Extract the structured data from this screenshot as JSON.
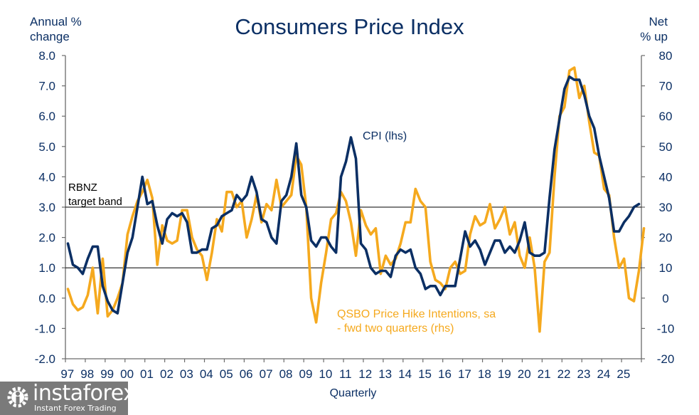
{
  "chart_data": {
    "type": "line",
    "title": "Consumers Price Index",
    "xlabel": "Quarterly",
    "ylabel_left": "Annual % change",
    "ylabel_left_lines": [
      "Annual %",
      "change"
    ],
    "ylabel_right": "Net % up",
    "ylabel_right_lines": [
      "Net",
      "% up"
    ],
    "ylim_left": [
      -2.0,
      8.0
    ],
    "ylim_right": [
      -20,
      80
    ],
    "yticks_left": [
      "8.0",
      "7.0",
      "6.0",
      "5.0",
      "4.0",
      "3.0",
      "2.0",
      "1.0",
      "0.0",
      "-1.0",
      "-2.0"
    ],
    "yticks_right": [
      "80",
      "70",
      "60",
      "50",
      "40",
      "30",
      "20",
      "10",
      "0",
      "-10",
      "-20"
    ],
    "xticks": [
      "97",
      "98",
      "99",
      "00",
      "01",
      "02",
      "03",
      "04",
      "05",
      "06",
      "07",
      "08",
      "09",
      "10",
      "11",
      "12",
      "13",
      "14",
      "15",
      "16",
      "17",
      "18",
      "19",
      "20",
      "21",
      "22",
      "23",
      "24",
      "25"
    ],
    "x_start_year": 1997,
    "x_end_year": 2026,
    "reference_lines_left": [
      1.0,
      3.0
    ],
    "reference_label": [
      "RBNZ",
      "target band"
    ],
    "grid": false,
    "series": [
      {
        "name": "CPI (lhs)",
        "axis": "left",
        "color": "#0b2f64",
        "start": "1997Q1",
        "frequency": "quarterly",
        "values": [
          1.8,
          1.1,
          1.0,
          0.8,
          1.3,
          1.7,
          1.7,
          0.4,
          -0.1,
          -0.4,
          -0.5,
          0.5,
          1.5,
          2.0,
          3.0,
          4.0,
          3.1,
          3.2,
          2.4,
          1.8,
          2.6,
          2.8,
          2.7,
          2.8,
          2.5,
          1.5,
          1.5,
          1.6,
          1.6,
          2.3,
          2.4,
          2.7,
          2.8,
          2.9,
          3.4,
          3.2,
          3.4,
          4.0,
          3.5,
          2.6,
          2.5,
          2.0,
          1.8,
          3.2,
          3.4,
          4.0,
          5.1,
          3.4,
          3.0,
          1.9,
          1.7,
          2.0,
          2.0,
          1.7,
          1.5,
          4.0,
          4.5,
          5.3,
          4.6,
          1.8,
          1.6,
          1.0,
          0.8,
          0.9,
          0.9,
          0.7,
          1.4,
          1.6,
          1.5,
          1.6,
          1.0,
          0.8,
          0.3,
          0.4,
          0.4,
          0.1,
          0.4,
          0.4,
          0.4,
          1.3,
          2.2,
          1.7,
          1.9,
          1.6,
          1.1,
          1.5,
          1.9,
          1.9,
          1.5,
          1.7,
          1.5,
          1.9,
          2.5,
          1.5,
          1.4,
          1.4,
          1.5,
          3.3,
          4.9,
          5.9,
          6.9,
          7.3,
          7.2,
          7.2,
          6.7,
          6.0,
          5.6,
          4.7,
          4.0,
          3.3,
          2.2,
          2.2,
          2.5,
          2.7,
          3.0,
          3.1
        ]
      },
      {
        "name": "QSBO Price Hike Intentions, sa - fwd two quarters (rhs)",
        "label_lines": [
          "QSBO Price Hike Intentions, sa",
          "- fwd two quarters (rhs)"
        ],
        "axis": "right",
        "color": "#f5a91e",
        "start": "1997Q1",
        "frequency": "quarterly",
        "values": [
          3,
          -2,
          -4,
          -3,
          1,
          10,
          -5,
          13,
          -6,
          -4,
          0,
          5,
          21,
          27,
          32,
          35,
          39,
          33,
          11,
          24,
          19,
          18,
          19,
          29,
          29,
          20,
          16,
          14,
          6,
          15,
          26,
          22,
          35,
          35,
          30,
          32,
          20,
          26,
          34,
          25,
          31,
          29,
          39,
          30,
          32,
          34,
          47,
          44,
          30,
          0,
          -8,
          5,
          15,
          26,
          28,
          35,
          32,
          25,
          14,
          29,
          24,
          21,
          23,
          8,
          14,
          11,
          13,
          18,
          25,
          25,
          36,
          32,
          30,
          12,
          6,
          5,
          3,
          10,
          12,
          8,
          9,
          21,
          27,
          24,
          25,
          31,
          23,
          26,
          30,
          21,
          25,
          14,
          10,
          20,
          10,
          -11,
          12,
          15,
          40,
          60,
          63,
          75,
          76,
          66,
          70,
          58,
          48,
          47,
          36,
          34,
          20,
          10,
          13,
          0,
          -1,
          9,
          23
        ]
      }
    ]
  },
  "watermark": {
    "brand": "instaforex",
    "tagline": "Instant Forex Trading",
    "icon": "gear-person-icon"
  }
}
